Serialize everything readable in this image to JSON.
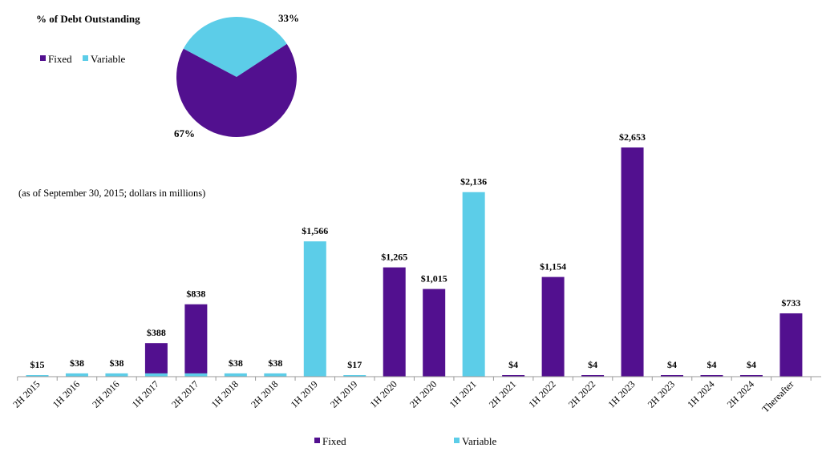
{
  "chart_data": [
    {
      "type": "pie",
      "title": "% of Debt Outstanding",
      "series": [
        {
          "name": "Fixed",
          "value": 67,
          "label": "67%",
          "color": "#52108f"
        },
        {
          "name": "Variable",
          "value": 33,
          "label": "33%",
          "color": "#5ccde8"
        }
      ],
      "legend": {
        "placement": "left",
        "items": [
          "Fixed",
          "Variable"
        ]
      }
    },
    {
      "type": "bar",
      "subtitle": "(as of September 30, 2015;  dollars in millions)",
      "categories": [
        "2H 2015",
        "1H 2016",
        "2H 2016",
        "1H 2017",
        "2H 2017",
        "1H 2018",
        "2H 2018",
        "1H 2019",
        "2H 2019",
        "1H 2020",
        "2H 2020",
        "1H 2021",
        "2H 2021",
        "1H 2022",
        "2H 2022",
        "1H 2023",
        "2H 2023",
        "1H 2024",
        "2H 2024",
        "Thereafter"
      ],
      "series": [
        {
          "name": "Fixed",
          "color": "#52108f",
          "values": [
            0,
            0,
            0,
            350,
            800,
            0,
            0,
            0,
            0,
            1265,
            1015,
            0,
            4,
            1154,
            4,
            2653,
            4,
            4,
            4,
            733
          ]
        },
        {
          "name": "Variable",
          "color": "#5ccde8",
          "values": [
            15,
            38,
            38,
            38,
            38,
            38,
            38,
            1566,
            17,
            0,
            0,
            2136,
            0,
            0,
            0,
            0,
            0,
            0,
            0,
            0
          ]
        }
      ],
      "totals": [
        15,
        38,
        38,
        388,
        838,
        38,
        38,
        1566,
        17,
        1265,
        1015,
        2136,
        4,
        1154,
        4,
        2653,
        4,
        4,
        4,
        733
      ],
      "data_labels": [
        "$15",
        "$38",
        "$38",
        "$388",
        "$838",
        "$38",
        "$38",
        "$1,566",
        "$17",
        "$1,265",
        "$1,015",
        "$2,136",
        "$4",
        "$1,154",
        "$4",
        "$2,653",
        "$4",
        "$4",
        "$4",
        "$733"
      ],
      "stacked": true,
      "ylim": [
        0,
        2653
      ],
      "grid": false,
      "legend": {
        "placement": "bottom",
        "items": [
          "Fixed",
          "Variable"
        ]
      }
    }
  ]
}
